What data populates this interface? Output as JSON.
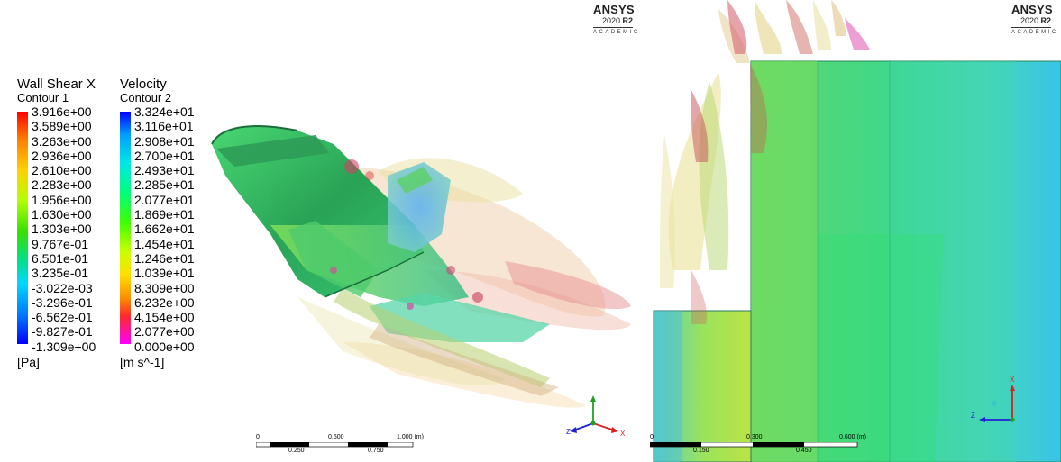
{
  "brand": {
    "name": "ANSYS",
    "version_prefix": "2020 ",
    "version_bold": "R2",
    "edition": "ACADEMIC"
  },
  "legend_shear": {
    "title": "Wall Shear X",
    "subtitle": "Contour 1",
    "ticks": [
      "3.916e+00",
      "3.589e+00",
      "3.263e+00",
      "2.936e+00",
      "2.610e+00",
      "2.283e+00",
      "1.956e+00",
      "1.630e+00",
      "1.303e+00",
      "9.767e-01",
      "6.501e-01",
      "3.235e-01",
      "-3.022e-03",
      "-3.296e-01",
      "-6.562e-01",
      "-9.827e-01",
      "-1.309e+00"
    ],
    "unit": "[Pa]"
  },
  "legend_velocity": {
    "title": "Velocity",
    "subtitle": "Contour 2",
    "ticks": [
      "3.324e+01",
      "3.116e+01",
      "2.908e+01",
      "2.700e+01",
      "2.493e+01",
      "2.285e+01",
      "2.077e+01",
      "1.869e+01",
      "1.662e+01",
      "1.454e+01",
      "1.246e+01",
      "1.039e+01",
      "8.309e+00",
      "6.232e+00",
      "4.154e+00",
      "2.077e+00",
      "0.000e+00"
    ],
    "unit": "[m s^-1]"
  },
  "scale_left": {
    "top_labels": [
      "0",
      "0.500",
      "1.000 (m)"
    ],
    "bottom_labels": [
      "0.250",
      "0.750"
    ]
  },
  "scale_right": {
    "top_labels": [
      "0",
      "0.300",
      "0.600 (m)"
    ],
    "bottom_labels": [
      "0.150",
      "0.450"
    ]
  },
  "axes_left": {
    "labels": [
      "Z",
      "X"
    ]
  },
  "axes_right": {
    "labels": [
      "X",
      "Z"
    ]
  },
  "colors": {
    "axis_x": "#d62020",
    "axis_y": "#1fa01f",
    "axis_z": "#2020d6"
  }
}
